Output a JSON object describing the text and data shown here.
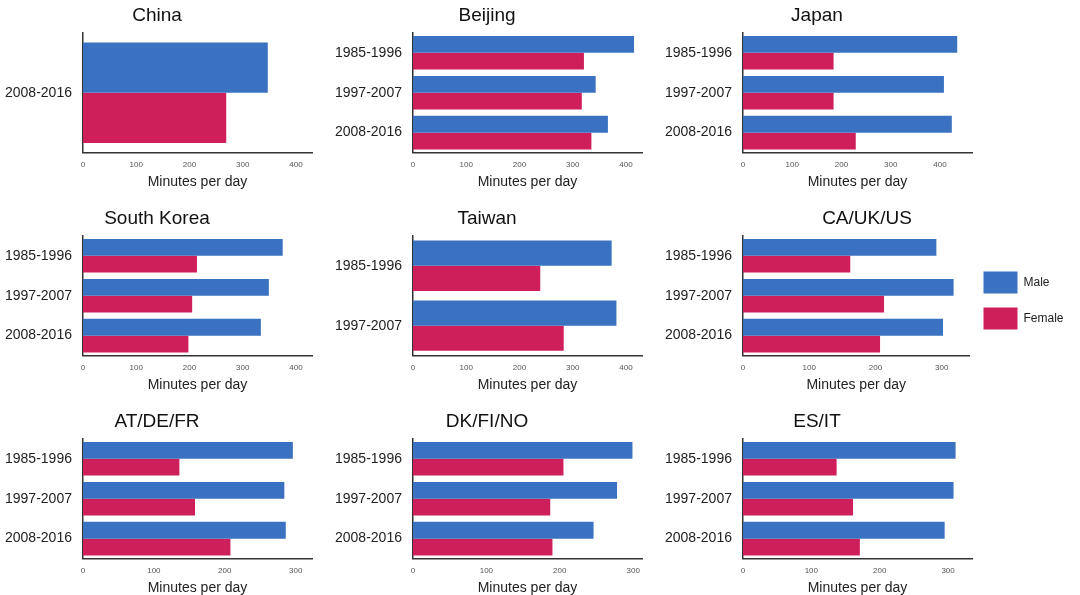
{
  "chart_data": [
    {
      "type": "bar",
      "orientation": "horizontal",
      "title": "China",
      "xlabel": "Minutes per day",
      "categories": [
        "2008-2016"
      ],
      "xlim": [
        0,
        430
      ],
      "xticks": [
        0,
        100,
        200,
        300,
        400
      ],
      "grid": false,
      "legend": false,
      "series": [
        {
          "color": "#3a71c1",
          "values": [
            347
          ]
        },
        {
          "color": "#cf1f5a",
          "values": [
            269
          ]
        }
      ]
    },
    {
      "type": "bar",
      "orientation": "horizontal",
      "title": "Beijing",
      "xlabel": "Minutes per day",
      "categories": [
        "1985-1996",
        "1997-2007",
        "2008-2016"
      ],
      "xlim": [
        0,
        430
      ],
      "xticks": [
        0,
        100,
        200,
        300,
        400
      ],
      "grid": false,
      "legend": false,
      "series": [
        {
          "color": "#3a71c1",
          "values": [
            415,
            343,
            366
          ]
        },
        {
          "color": "#cf1f5a",
          "values": [
            321,
            317,
            335
          ]
        }
      ]
    },
    {
      "type": "bar",
      "orientation": "horizontal",
      "title": "Japan",
      "xlabel": "Minutes per day",
      "categories": [
        "1985-1996",
        "1997-2007",
        "2008-2016"
      ],
      "xlim": [
        0,
        465
      ],
      "xticks": [
        0,
        100,
        200,
        300,
        400
      ],
      "grid": false,
      "legend": false,
      "series": [
        {
          "color": "#3a71c1",
          "values": [
            435,
            408,
            424
          ]
        },
        {
          "color": "#cf1f5a",
          "values": [
            184,
            184,
            229
          ]
        }
      ]
    },
    {
      "type": "bar",
      "orientation": "horizontal",
      "title": "South Korea",
      "xlabel": "Minutes per day",
      "categories": [
        "1985-1996",
        "1997-2007",
        "2008-2016"
      ],
      "xlim": [
        0,
        430
      ],
      "xticks": [
        0,
        100,
        200,
        300,
        400
      ],
      "grid": false,
      "legend": false,
      "series": [
        {
          "color": "#3a71c1",
          "values": [
            375,
            349,
            334
          ]
        },
        {
          "color": "#cf1f5a",
          "values": [
            214,
            205,
            198
          ]
        }
      ]
    },
    {
      "type": "bar",
      "orientation": "horizontal",
      "title": "Taiwan",
      "xlabel": "Minutes per day",
      "categories": [
        "1985-1996",
        "1997-2007"
      ],
      "xlim": [
        0,
        430
      ],
      "xticks": [
        0,
        100,
        200,
        300,
        400
      ],
      "grid": false,
      "legend": false,
      "series": [
        {
          "color": "#3a71c1",
          "values": [
            373,
            382
          ]
        },
        {
          "color": "#cf1f5a",
          "values": [
            239,
            283
          ]
        }
      ]
    },
    {
      "type": "bar",
      "orientation": "horizontal",
      "title": "CA/UK/US",
      "xlabel": "Minutes per day",
      "categories": [
        "1985-1996",
        "1997-2007",
        "2008-2016"
      ],
      "xlim": [
        0,
        342
      ],
      "xticks": [
        0,
        100,
        200,
        300
      ],
      "grid": false,
      "legend": "right",
      "series": [
        {
          "name": "Male",
          "color": "#3a71c1",
          "values": [
            292,
            318,
            302
          ]
        },
        {
          "name": "Female",
          "color": "#cf1f5a",
          "values": [
            162,
            213,
            207
          ]
        }
      ]
    },
    {
      "type": "bar",
      "orientation": "horizontal",
      "title": "AT/DE/FR",
      "xlabel": "Minutes per day",
      "categories": [
        "1985-1996",
        "1997-2007",
        "2008-2016"
      ],
      "xlim": [
        0,
        323
      ],
      "xticks": [
        0,
        100,
        200,
        300
      ],
      "grid": false,
      "legend": false,
      "series": [
        {
          "color": "#3a71c1",
          "values": [
            296,
            284,
            286
          ]
        },
        {
          "color": "#cf1f5a",
          "values": [
            136,
            158,
            208
          ]
        }
      ]
    },
    {
      "type": "bar",
      "orientation": "horizontal",
      "title": "DK/FI/NO",
      "xlabel": "Minutes per day",
      "categories": [
        "1985-1996",
        "1997-2007",
        "2008-2016"
      ],
      "xlim": [
        0,
        312
      ],
      "xticks": [
        0,
        100,
        200,
        300
      ],
      "grid": false,
      "legend": false,
      "series": [
        {
          "color": "#3a71c1",
          "values": [
            299,
            278,
            246
          ]
        },
        {
          "color": "#cf1f5a",
          "values": [
            205,
            187,
            190
          ]
        }
      ]
    },
    {
      "type": "bar",
      "orientation": "horizontal",
      "title": "ES/IT",
      "xlabel": "Minutes per day",
      "categories": [
        "1985-1996",
        "1997-2007",
        "2008-2016"
      ],
      "xlim": [
        0,
        335
      ],
      "xticks": [
        0,
        100,
        200,
        300
      ],
      "grid": false,
      "legend": false,
      "series": [
        {
          "color": "#3a71c1",
          "values": [
            311,
            308,
            295
          ]
        },
        {
          "color": "#cf1f5a",
          "values": [
            137,
            161,
            171
          ]
        }
      ]
    }
  ]
}
